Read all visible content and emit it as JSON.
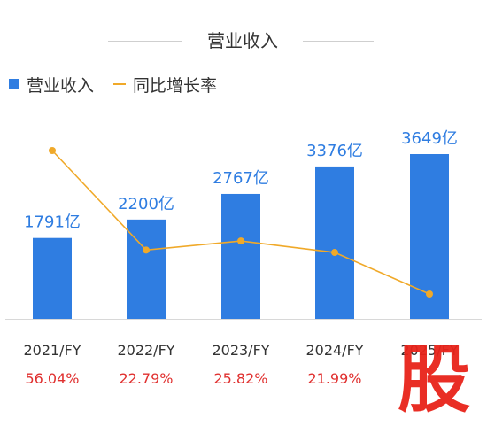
{
  "chart_data": {
    "type": "bar",
    "title": "营业收入",
    "categories": [
      "2021/FY",
      "2022/FY",
      "2023/FY",
      "2024/FY",
      "2025/FY"
    ],
    "series": [
      {
        "name": "营业收入",
        "values": [
          1791,
          2200,
          2767,
          3376,
          3649
        ],
        "labels": [
          "1791亿",
          "2200亿",
          "2767亿",
          "3376亿",
          "3649亿"
        ],
        "color": "#2f7de1"
      },
      {
        "name": "同比增长率",
        "type": "line",
        "values": [
          56.04,
          22.79,
          25.82,
          21.99,
          8.09
        ],
        "labels": [
          "56.04%",
          "22.79%",
          "25.82%",
          "21.99%",
          ""
        ],
        "color": "#f0a929"
      }
    ],
    "growth_label_color": "#e0302f",
    "legend_position": "top-left",
    "grid": false
  },
  "watermark": "股"
}
